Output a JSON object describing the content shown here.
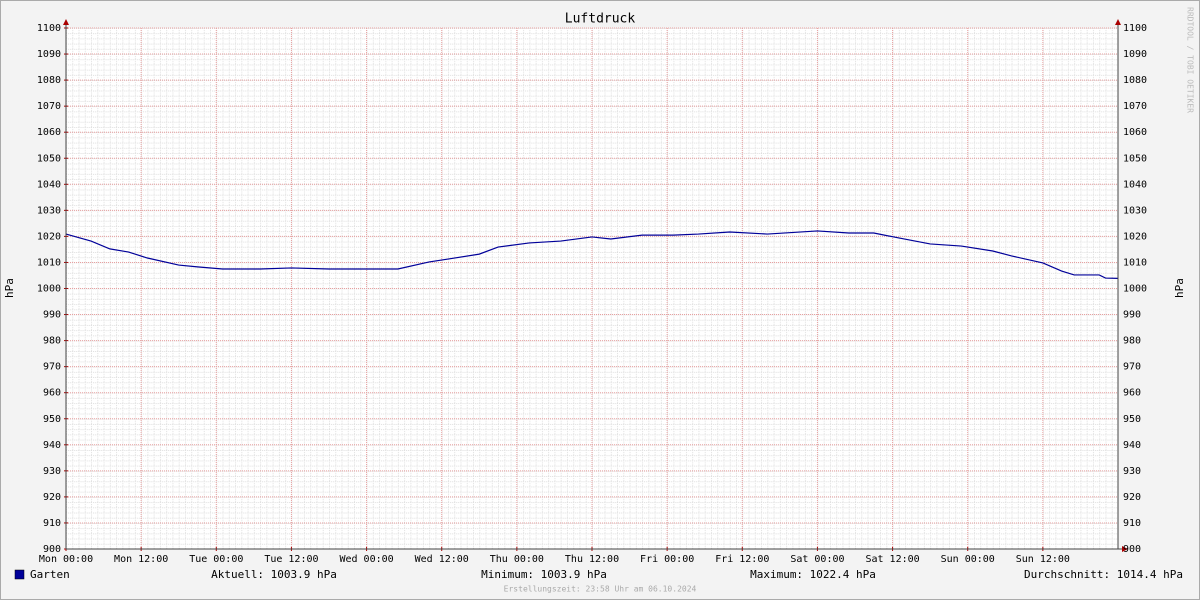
{
  "chart_data": {
    "type": "line",
    "title": "Luftdruck",
    "y_label": "hPa",
    "watermark": "RRDTOOL / TOBI OETIKER",
    "xlim": [
      0,
      168
    ],
    "xticks": [
      {
        "value": 0,
        "label": "Mon 00:00"
      },
      {
        "value": 12,
        "label": "Mon 12:00"
      },
      {
        "value": 24,
        "label": "Tue 00:00"
      },
      {
        "value": 36,
        "label": "Tue 12:00"
      },
      {
        "value": 48,
        "label": "Wed 00:00"
      },
      {
        "value": 60,
        "label": "Wed 12:00"
      },
      {
        "value": 72,
        "label": "Thu 00:00"
      },
      {
        "value": 84,
        "label": "Thu 12:00"
      },
      {
        "value": 96,
        "label": "Fri 00:00"
      },
      {
        "value": 108,
        "label": "Fri 12:00"
      },
      {
        "value": 120,
        "label": "Sat 00:00"
      },
      {
        "value": 132,
        "label": "Sat 12:00"
      },
      {
        "value": 144,
        "label": "Sun 00:00"
      },
      {
        "value": 156,
        "label": "Sun 12:00"
      }
    ],
    "ylim": [
      900,
      1100
    ],
    "yticks": [
      900,
      910,
      920,
      930,
      940,
      950,
      960,
      970,
      980,
      990,
      1000,
      1010,
      1020,
      1030,
      1040,
      1050,
      1060,
      1070,
      1080,
      1090,
      1100
    ],
    "grid": true,
    "x": [
      0,
      4,
      7,
      10,
      13,
      18,
      21,
      25,
      31,
      36,
      42,
      48,
      53,
      58,
      61,
      66,
      69,
      74,
      79,
      84,
      87,
      92,
      97,
      101,
      106,
      112,
      120,
      125,
      129,
      133,
      138,
      143,
      148,
      151,
      156,
      159,
      161,
      165,
      166,
      168
    ],
    "series": [
      {
        "name": "Garten",
        "color": "#000099",
        "values": [
          1020.9,
          1018.2,
          1015.2,
          1014.0,
          1011.7,
          1009.0,
          1008.3,
          1007.5,
          1007.5,
          1007.9,
          1007.5,
          1007.5,
          1007.5,
          1010.2,
          1011.3,
          1013.2,
          1015.9,
          1017.5,
          1018.2,
          1019.8,
          1019.0,
          1020.5,
          1020.5,
          1020.9,
          1021.7,
          1020.9,
          1022.1,
          1021.3,
          1021.3,
          1019.4,
          1017.1,
          1016.3,
          1014.4,
          1012.5,
          1009.8,
          1006.7,
          1005.2,
          1005.2,
          1004.0,
          1003.9
        ]
      }
    ],
    "stats": [
      "Aktuell: 1003.9 hPa",
      "Minimum: 1003.9 hPa",
      "Maximum: 1022.4 hPa",
      "Durchschnitt: 1014.4 hPa"
    ],
    "footer": "Erstellungszeit: 23:58 Uhr am 06.10.2024"
  }
}
